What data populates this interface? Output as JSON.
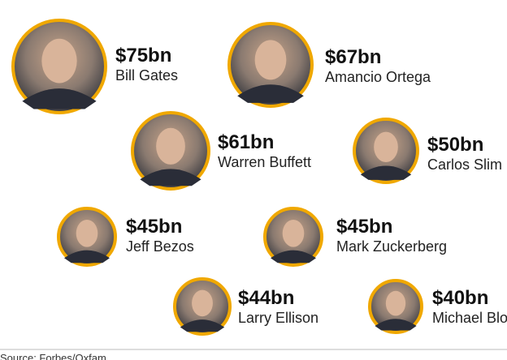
{
  "people": [
    {
      "wealth": "$75bn",
      "name": "Bill Gates"
    },
    {
      "wealth": "$67bn",
      "name": "Amancio Ortega"
    },
    {
      "wealth": "$61bn",
      "name": "Warren Buffett"
    },
    {
      "wealth": "$50bn",
      "name": "Carlos Slim"
    },
    {
      "wealth": "$45bn",
      "name": "Jeff Bezos"
    },
    {
      "wealth": "$45bn",
      "name": "Mark Zuckerberg"
    },
    {
      "wealth": "$44bn",
      "name": "Larry Ellison"
    },
    {
      "wealth": "$40bn",
      "name": "Michael Bloomberg"
    }
  ],
  "source": "Source: Forbes/Oxfam"
}
